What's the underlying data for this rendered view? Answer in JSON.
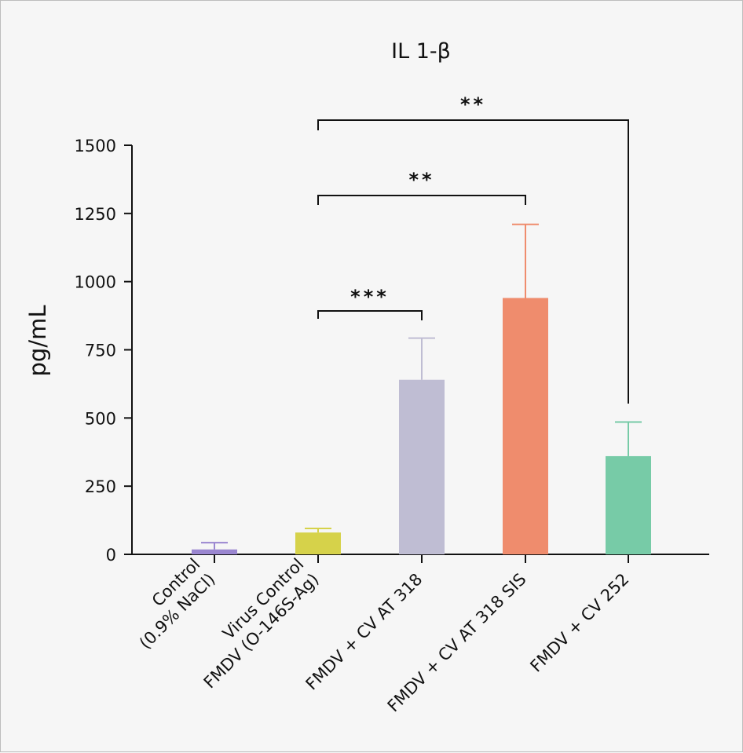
{
  "chart_data": {
    "type": "bar",
    "title": "IL 1-β",
    "xlabel": "",
    "ylabel": "pg/mL",
    "ylim": [
      0,
      1500
    ],
    "yticks": [
      0,
      250,
      500,
      750,
      1000,
      1250,
      1500
    ],
    "ytick_labels": [
      "0",
      "250",
      "500",
      "750",
      "1000",
      "1250",
      "1500"
    ],
    "categories": [
      [
        "Control",
        "(0.9% NaCl)"
      ],
      [
        "Virus Control",
        "FMDV (O-146S-Ag)"
      ],
      [
        "FMDV + CV AT 318"
      ],
      [
        "FMDV + CV AT 318 SIS"
      ],
      [
        "FMDV + CV 252"
      ]
    ],
    "values": [
      18,
      80,
      640,
      940,
      360
    ],
    "errors": [
      25,
      15,
      153,
      270,
      125
    ],
    "colors": [
      "#9a86d0",
      "#d6d24a",
      "#bfbdd3",
      "#ef8c6d",
      "#77cba7"
    ],
    "significance": [
      {
        "from": 1,
        "to": 2,
        "label": "***"
      },
      {
        "from": 1,
        "to": 3,
        "label": "**"
      },
      {
        "from": 1,
        "to": 4,
        "label": "**"
      }
    ],
    "grid": false,
    "legend": "none"
  }
}
